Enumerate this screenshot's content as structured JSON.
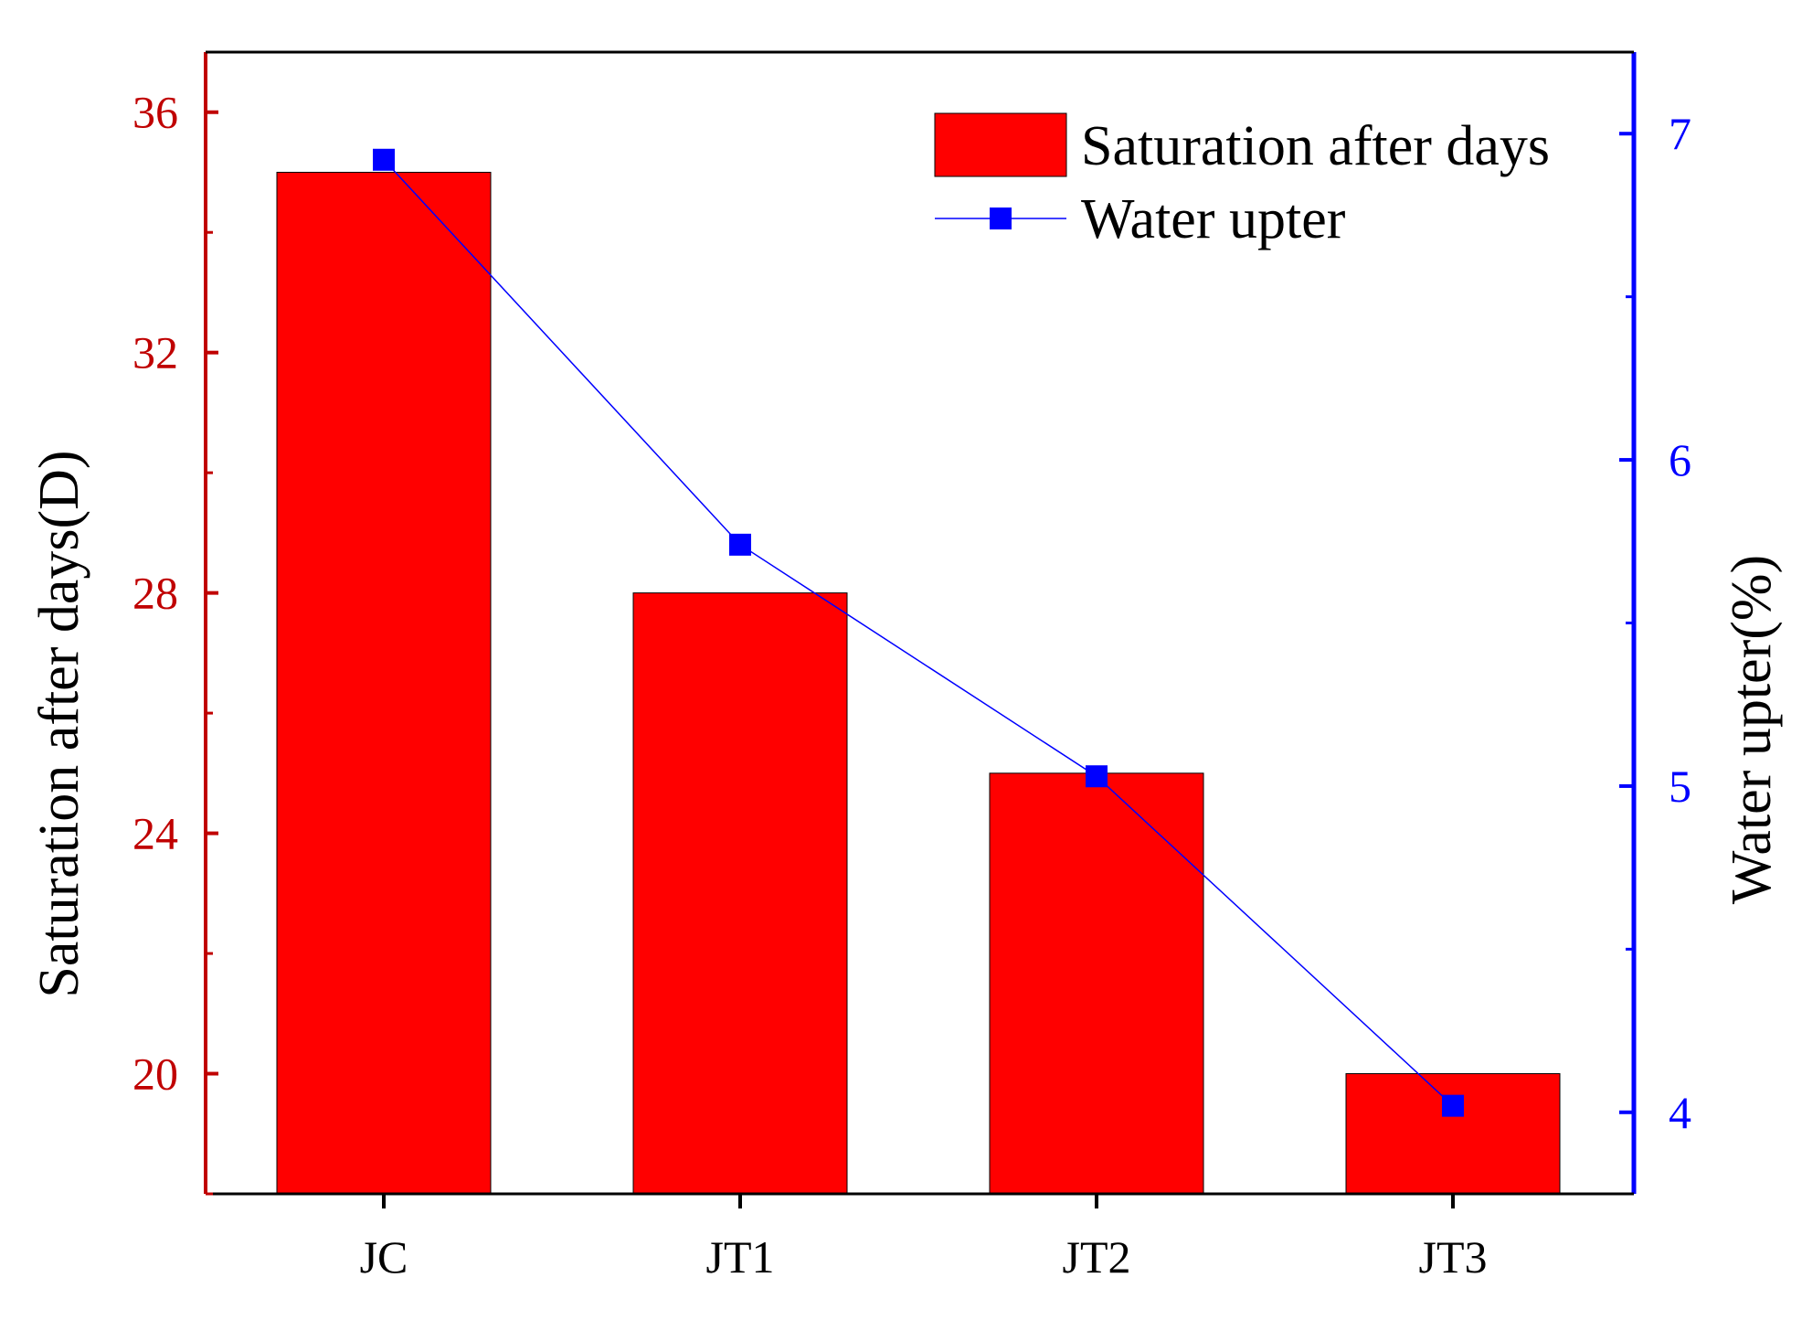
{
  "chart_data": {
    "type": "bar+line",
    "categories": [
      "JC",
      "JT1",
      "JT2",
      "JT3"
    ],
    "series": [
      {
        "name": "Saturation after days",
        "kind": "bar",
        "axis": "left",
        "values": [
          35,
          28,
          25,
          20
        ],
        "color": "#ff0000"
      },
      {
        "name": "Water upter",
        "kind": "line",
        "axis": "right",
        "values": [
          6.92,
          5.74,
          5.03,
          4.02
        ],
        "color": "#0000ff"
      }
    ],
    "left_axis": {
      "label": "Saturation after days(D)",
      "ylim": [
        18,
        37
      ],
      "ticks": [
        20,
        24,
        28,
        32,
        36
      ],
      "tick_labels": [
        "20",
        "24",
        "28",
        "32",
        "36"
      ],
      "color": "#c00000"
    },
    "right_axis": {
      "label": "Water upter(%)",
      "ylim": [
        3.75,
        7.25
      ],
      "ticks": [
        4,
        5,
        6,
        7
      ],
      "tick_labels": [
        "4",
        "5",
        "6",
        "7"
      ],
      "color": "#0000ff"
    },
    "legend": {
      "position": "top-right",
      "entries": [
        "Saturation after days",
        "Water upter"
      ]
    },
    "grid": false
  }
}
